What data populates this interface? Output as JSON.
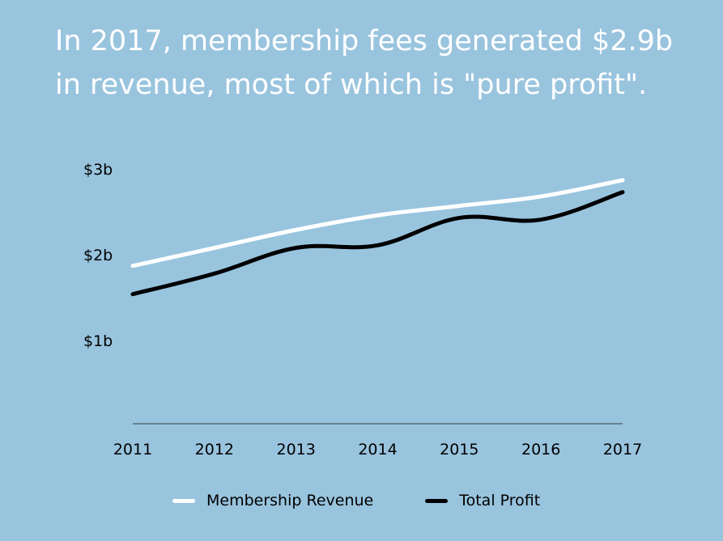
{
  "title_lines": [
    "In 2017, membership fees generated $2.9b",
    "in revenue, most of which is \"pure profit\"."
  ],
  "chart_data": {
    "type": "line",
    "title": "In 2017, membership fees generated $2.9b in revenue, most of which is \"pure profit\".",
    "x": [
      "2011",
      "2012",
      "2013",
      "2014",
      "2015",
      "2016",
      "2017"
    ],
    "ylim": [
      0,
      3
    ],
    "y_ticks": [
      {
        "value": 3,
        "label": "$3b"
      },
      {
        "value": 2,
        "label": "$2b"
      },
      {
        "value": 1,
        "label": "$1b"
      }
    ],
    "series": [
      {
        "name": "Membership Revenue",
        "color": "#ffffff",
        "values": [
          1.87,
          2.08,
          2.29,
          2.46,
          2.57,
          2.68,
          2.87
        ]
      },
      {
        "name": "Total Profit",
        "color": "#000000",
        "values": [
          1.54,
          1.78,
          2.08,
          2.11,
          2.43,
          2.41,
          2.73
        ]
      }
    ],
    "xlabel": "",
    "ylabel": "",
    "legend_position": "bottom"
  },
  "colors": {
    "background": "#99c4de",
    "axis": "#4a5a66"
  }
}
